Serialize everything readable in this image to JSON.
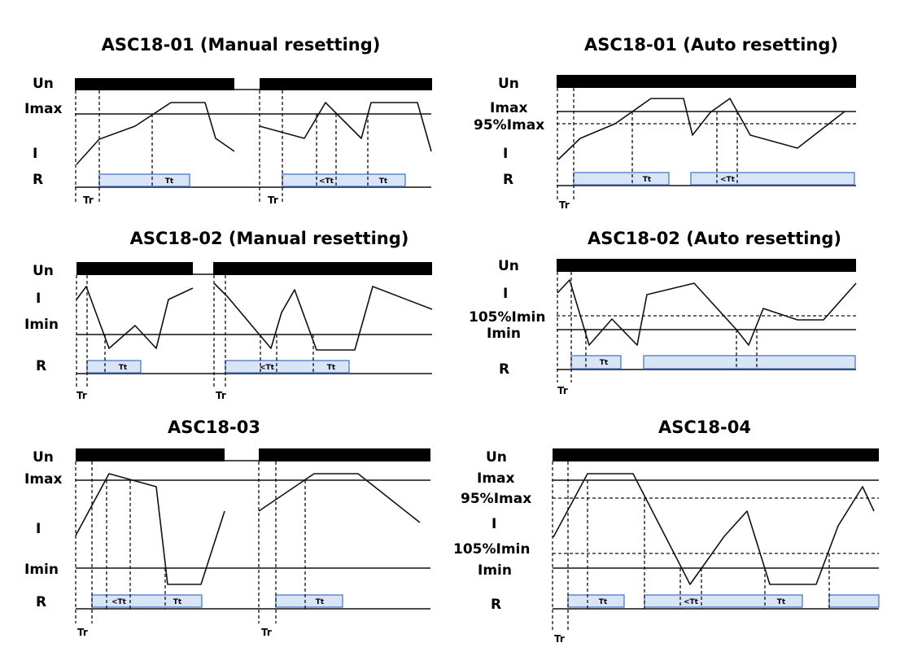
{
  "panels": {
    "p1": {
      "title": "ASC18-01 (Manual resetting)",
      "un": "Un",
      "imax": "Imax",
      "i": "I",
      "r": "R",
      "tr": "Tr",
      "tt1": "Tt",
      "tt2": "<Tt",
      "tt3": "Tt"
    },
    "p2": {
      "title": "ASC18-01 (Auto resetting)",
      "un": "Un",
      "imax": "Imax",
      "imax95": "95%Imax",
      "i": "I",
      "r": "R",
      "tr": "Tr",
      "tt1": "Tt",
      "tt2": "<Tt"
    },
    "p3": {
      "title": "ASC18-02 (Manual resetting)",
      "un": "Un",
      "i": "I",
      "imin": "Imin",
      "r": "R",
      "tr1": "Tr",
      "tr2": "Tr",
      "tt1": "Tt",
      "tt2": "<Tt",
      "tt3": "Tt"
    },
    "p4": {
      "title": "ASC18-02 (Auto resetting)",
      "un": "Un",
      "i": "I",
      "imin105": "105%Imin",
      "imin": "Imin",
      "r": "R",
      "tr": "Tr",
      "tt1": "Tt"
    },
    "p5": {
      "title": "ASC18-03",
      "un": "Un",
      "imax": "Imax",
      "i": "I",
      "imin": "Imin",
      "r": "R",
      "tr1": "Tr",
      "tr2": "Tr",
      "tt1": "<Tt",
      "tt2": "Tt",
      "tt3": "Tt"
    },
    "p6": {
      "title": "ASC18-04",
      "un": "Un",
      "imax": "Imax",
      "imax95": "95%Imax",
      "i": "I",
      "imin105": "105%Imin",
      "imin": "Imin",
      "r": "R",
      "tr": "Tr",
      "tt1": "Tt",
      "tt2": "<Tt",
      "tt3": "Tt"
    }
  }
}
